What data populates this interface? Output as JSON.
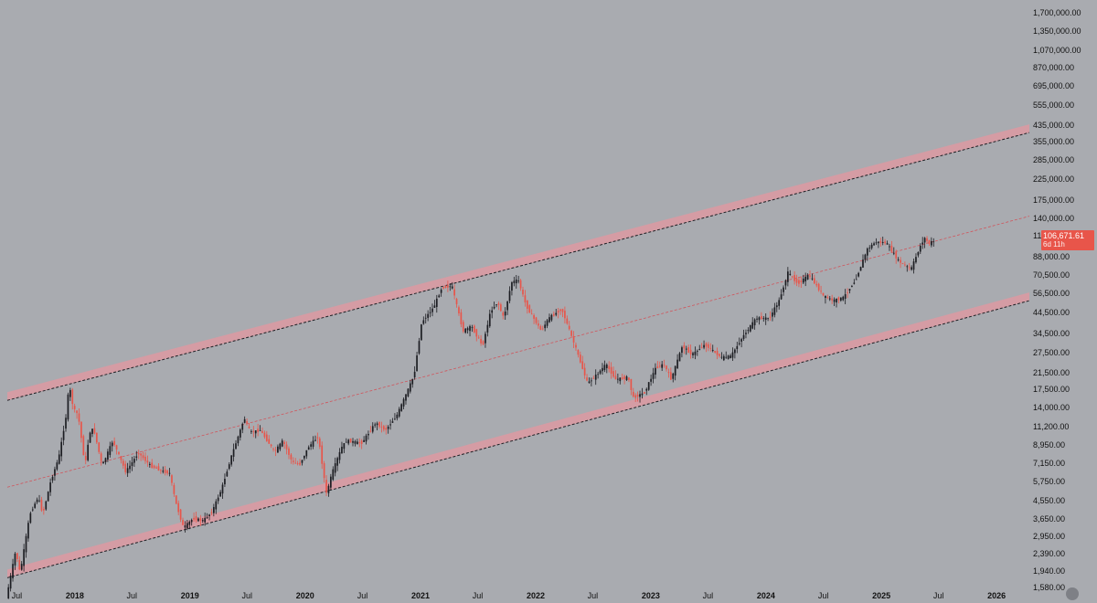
{
  "colors": {
    "background": "#a9abb0",
    "up_candle": "#1c1d22",
    "down_candle": "#e8554a",
    "channel_band": "#d99aa3",
    "channel_line": "#1e1f24",
    "midline": "#d0555c",
    "badge": "#e8554a"
  },
  "last_price": {
    "value": "106,671.61",
    "countdown": "6d 11h"
  },
  "chart_data": {
    "type": "candlestick",
    "y_scale": "log",
    "ylim": [
      1400,
      2000000
    ],
    "xlim": [
      "2017-06-01",
      "2026-04-15"
    ],
    "y_tick_labels": [
      "1,700,000.00",
      "1,350,000.00",
      "1,070,000.00",
      "870,000.00",
      "695,000.00",
      "555,000.00",
      "435,000.00",
      "355,000.00",
      "285,000.00",
      "225,000.00",
      "175,000.00",
      "140,000.00",
      "113,000.00",
      "88,000.00",
      "70,500.00",
      "56,500.00",
      "44,500.00",
      "34,500.00",
      "27,500.00",
      "21,500.00",
      "17,500.00",
      "14,000.00",
      "11,200.00",
      "8,950.00",
      "7,150.00",
      "5,750.00",
      "4,550.00",
      "3,650.00",
      "2,950.00",
      "2,390.00",
      "1,940.00",
      "1,580.00"
    ],
    "x_tick_labels": [
      {
        "label": "Jul",
        "date": "2017-07-01",
        "year": false
      },
      {
        "label": "2018",
        "date": "2018-01-01",
        "year": true
      },
      {
        "label": "Jul",
        "date": "2018-07-01",
        "year": false
      },
      {
        "label": "2019",
        "date": "2019-01-01",
        "year": true
      },
      {
        "label": "Jul",
        "date": "2019-07-01",
        "year": false
      },
      {
        "label": "2020",
        "date": "2020-01-01",
        "year": true
      },
      {
        "label": "Jul",
        "date": "2020-07-01",
        "year": false
      },
      {
        "label": "2021",
        "date": "2021-01-01",
        "year": true
      },
      {
        "label": "Jul",
        "date": "2021-07-01",
        "year": false
      },
      {
        "label": "2022",
        "date": "2022-01-01",
        "year": true
      },
      {
        "label": "Jul",
        "date": "2022-07-01",
        "year": false
      },
      {
        "label": "2023",
        "date": "2023-01-01",
        "year": true
      },
      {
        "label": "Jul",
        "date": "2023-07-01",
        "year": false
      },
      {
        "label": "2024",
        "date": "2024-01-01",
        "year": true
      },
      {
        "label": "Jul",
        "date": "2024-07-01",
        "year": false
      },
      {
        "label": "2025",
        "date": "2025-01-01",
        "year": true
      },
      {
        "label": "Jul",
        "date": "2025-07-01",
        "year": false
      },
      {
        "label": "2026",
        "date": "2026-01-01",
        "year": true
      }
    ],
    "price_path": [
      [
        "2017-06-01",
        1400
      ],
      [
        "2017-07-01",
        2500
      ],
      [
        "2017-07-15",
        1900
      ],
      [
        "2017-08-15",
        3900
      ],
      [
        "2017-09-10",
        4800
      ],
      [
        "2017-09-25",
        3900
      ],
      [
        "2017-10-20",
        5800
      ],
      [
        "2017-11-15",
        7800
      ],
      [
        "2017-12-10",
        13500
      ],
      [
        "2017-12-17",
        19000
      ],
      [
        "2017-12-31",
        14000
      ],
      [
        "2018-01-15",
        13000
      ],
      [
        "2018-02-06",
        7000
      ],
      [
        "2018-02-20",
        10500
      ],
      [
        "2018-03-05",
        11000
      ],
      [
        "2018-04-01",
        7000
      ],
      [
        "2018-05-05",
        9500
      ],
      [
        "2018-06-15",
        6500
      ],
      [
        "2018-07-25",
        8200
      ],
      [
        "2018-09-01",
        7000
      ],
      [
        "2018-10-15",
        6500
      ],
      [
        "2018-11-01",
        6400
      ],
      [
        "2018-11-20",
        4500
      ],
      [
        "2018-12-15",
        3300
      ],
      [
        "2019-01-15",
        3700
      ],
      [
        "2019-02-15",
        3600
      ],
      [
        "2019-03-15",
        4000
      ],
      [
        "2019-04-15",
        5300
      ],
      [
        "2019-05-15",
        7800
      ],
      [
        "2019-06-26",
        12500
      ],
      [
        "2019-07-15",
        10500
      ],
      [
        "2019-08-15",
        10800
      ],
      [
        "2019-09-30",
        8300
      ],
      [
        "2019-10-26",
        9500
      ],
      [
        "2019-11-25",
        7300
      ],
      [
        "2019-12-18",
        7100
      ],
      [
        "2020-01-15",
        8800
      ],
      [
        "2020-02-15",
        10000
      ],
      [
        "2020-03-12",
        5000
      ],
      [
        "2020-03-31",
        6500
      ],
      [
        "2020-04-30",
        8800
      ],
      [
        "2020-05-15",
        9500
      ],
      [
        "2020-07-01",
        9200
      ],
      [
        "2020-08-15",
        11800
      ],
      [
        "2020-09-15",
        10800
      ],
      [
        "2020-10-20",
        12800
      ],
      [
        "2020-11-15",
        16000
      ],
      [
        "2020-12-15",
        21000
      ],
      [
        "2021-01-08",
        40000
      ],
      [
        "2021-02-15",
        48000
      ],
      [
        "2021-03-13",
        61000
      ],
      [
        "2021-04-14",
        62000
      ],
      [
        "2021-05-19",
        36000
      ],
      [
        "2021-06-15",
        38000
      ],
      [
        "2021-07-20",
        30000
      ],
      [
        "2021-08-15",
        46000
      ],
      [
        "2021-09-06",
        51000
      ],
      [
        "2021-09-25",
        42000
      ],
      [
        "2021-10-20",
        65000
      ],
      [
        "2021-11-10",
        67000
      ],
      [
        "2021-12-05",
        49000
      ],
      [
        "2022-01-22",
        36000
      ],
      [
        "2022-02-15",
        42000
      ],
      [
        "2022-03-28",
        47000
      ],
      [
        "2022-05-09",
        30000
      ],
      [
        "2022-06-18",
        19000
      ],
      [
        "2022-07-15",
        21000
      ],
      [
        "2022-08-15",
        24000
      ],
      [
        "2022-09-15",
        20000
      ],
      [
        "2022-10-25",
        20500
      ],
      [
        "2022-11-09",
        16000
      ],
      [
        "2022-12-15",
        17000
      ],
      [
        "2023-01-20",
        23000
      ],
      [
        "2023-02-15",
        24000
      ],
      [
        "2023-03-10",
        20000
      ],
      [
        "2023-04-14",
        30000
      ],
      [
        "2023-05-15",
        27000
      ],
      [
        "2023-06-25",
        30500
      ],
      [
        "2023-08-17",
        26000
      ],
      [
        "2023-09-15",
        26500
      ],
      [
        "2023-10-25",
        34000
      ],
      [
        "2023-12-05",
        42000
      ],
      [
        "2024-01-15",
        42000
      ],
      [
        "2024-02-15",
        52000
      ],
      [
        "2024-03-14",
        73000
      ],
      [
        "2024-04-15",
        64000
      ],
      [
        "2024-05-20",
        71000
      ],
      [
        "2024-07-05",
        55000
      ],
      [
        "2024-08-05",
        52000
      ],
      [
        "2024-09-06",
        54000
      ],
      [
        "2024-10-15",
        67000
      ],
      [
        "2024-11-20",
        97000
      ],
      [
        "2024-12-17",
        106000
      ],
      [
        "2025-01-20",
        105000
      ],
      [
        "2025-02-28",
        84000
      ],
      [
        "2025-04-08",
        76000
      ],
      [
        "2025-05-10",
        103000
      ],
      [
        "2025-05-22",
        111000
      ],
      [
        "2025-06-05",
        104000
      ],
      [
        "2025-06-15",
        106671
      ]
    ],
    "channel": {
      "upper": {
        "start": [
          "2017-06-01",
          15500
        ],
        "end": [
          "2026-04-15",
          400000
        ]
      },
      "lower": {
        "start": [
          "2017-06-01",
          1800
        ],
        "end": [
          "2026-04-15",
          52000
        ]
      },
      "mid": {
        "start": [
          "2017-06-01",
          5400
        ],
        "end": [
          "2026-04-15",
          145000
        ]
      }
    }
  }
}
